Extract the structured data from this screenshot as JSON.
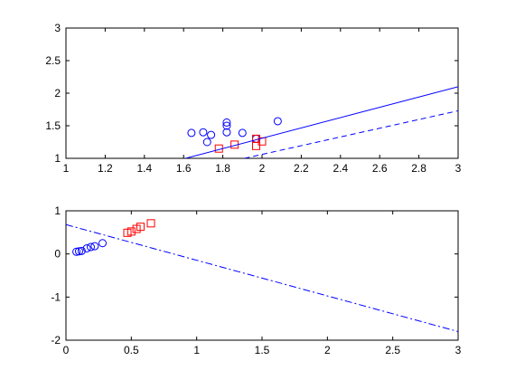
{
  "chart_data": [
    {
      "type": "scatter",
      "xlim": [
        1,
        3
      ],
      "ylim": [
        1,
        3
      ],
      "x_ticks": [
        1,
        1.2,
        1.4,
        1.6,
        1.8,
        2,
        2.2,
        2.4,
        2.6,
        2.8,
        3
      ],
      "x_tick_labels": [
        "1",
        "1.2",
        "1.4",
        "1.6",
        "1.8",
        "2",
        "2.2",
        "2.4",
        "2.6",
        "2.8",
        "3"
      ],
      "y_ticks": [
        1,
        1.5,
        2,
        2.5,
        3
      ],
      "y_tick_labels": [
        "1",
        "1.5",
        "2",
        "2.5",
        "3"
      ],
      "grid": false,
      "series": [
        {
          "marker": "circle",
          "color": "#0000ff",
          "points": [
            [
              1.64,
              1.39
            ],
            [
              1.7,
              1.4
            ],
            [
              1.72,
              1.25
            ],
            [
              1.74,
              1.36
            ],
            [
              1.82,
              1.55
            ],
            [
              1.82,
              1.5
            ],
            [
              1.82,
              1.4
            ],
            [
              1.9,
              1.39
            ],
            [
              1.97,
              1.3
            ],
            [
              2.08,
              1.57
            ]
          ]
        },
        {
          "marker": "square",
          "color": "#ff0000",
          "points": [
            [
              1.78,
              1.15
            ],
            [
              1.86,
              1.21
            ],
            [
              1.97,
              1.3
            ],
            [
              1.97,
              1.19
            ],
            [
              2.0,
              1.26
            ]
          ]
        },
        {
          "style": "line",
          "dash": "solid",
          "color": "#0000ff",
          "points": [
            [
              1.61,
              1.0
            ],
            [
              3.0,
              2.1
            ]
          ]
        },
        {
          "style": "line",
          "dash": "dashed",
          "color": "#0000ff",
          "points": [
            [
              1.91,
              1.0
            ],
            [
              3.0,
              1.73
            ]
          ]
        }
      ]
    },
    {
      "type": "scatter",
      "xlim": [
        0,
        3
      ],
      "ylim": [
        -2,
        1
      ],
      "x_ticks": [
        0,
        0.5,
        1,
        1.5,
        2,
        2.5,
        3
      ],
      "x_tick_labels": [
        "0",
        "0.5",
        "1",
        "1.5",
        "2",
        "2.5",
        "3"
      ],
      "y_ticks": [
        -2,
        -1,
        0,
        1
      ],
      "y_tick_labels": [
        "-2",
        "-1",
        "0",
        "1"
      ],
      "grid": false,
      "series": [
        {
          "marker": "circle",
          "color": "#0000ff",
          "points": [
            [
              0.08,
              0.05
            ],
            [
              0.1,
              0.06
            ],
            [
              0.12,
              0.07
            ],
            [
              0.16,
              0.13
            ],
            [
              0.19,
              0.16
            ],
            [
              0.22,
              0.18
            ],
            [
              0.28,
              0.25
            ]
          ]
        },
        {
          "marker": "square",
          "color": "#ff0000",
          "points": [
            [
              0.47,
              0.49
            ],
            [
              0.5,
              0.52
            ],
            [
              0.54,
              0.58
            ],
            [
              0.57,
              0.63
            ],
            [
              0.65,
              0.71
            ]
          ]
        },
        {
          "style": "line",
          "dash": "dashdot",
          "color": "#0000ff",
          "points": [
            [
              0.0,
              0.68
            ],
            [
              3.0,
              -1.8
            ]
          ]
        }
      ]
    }
  ]
}
